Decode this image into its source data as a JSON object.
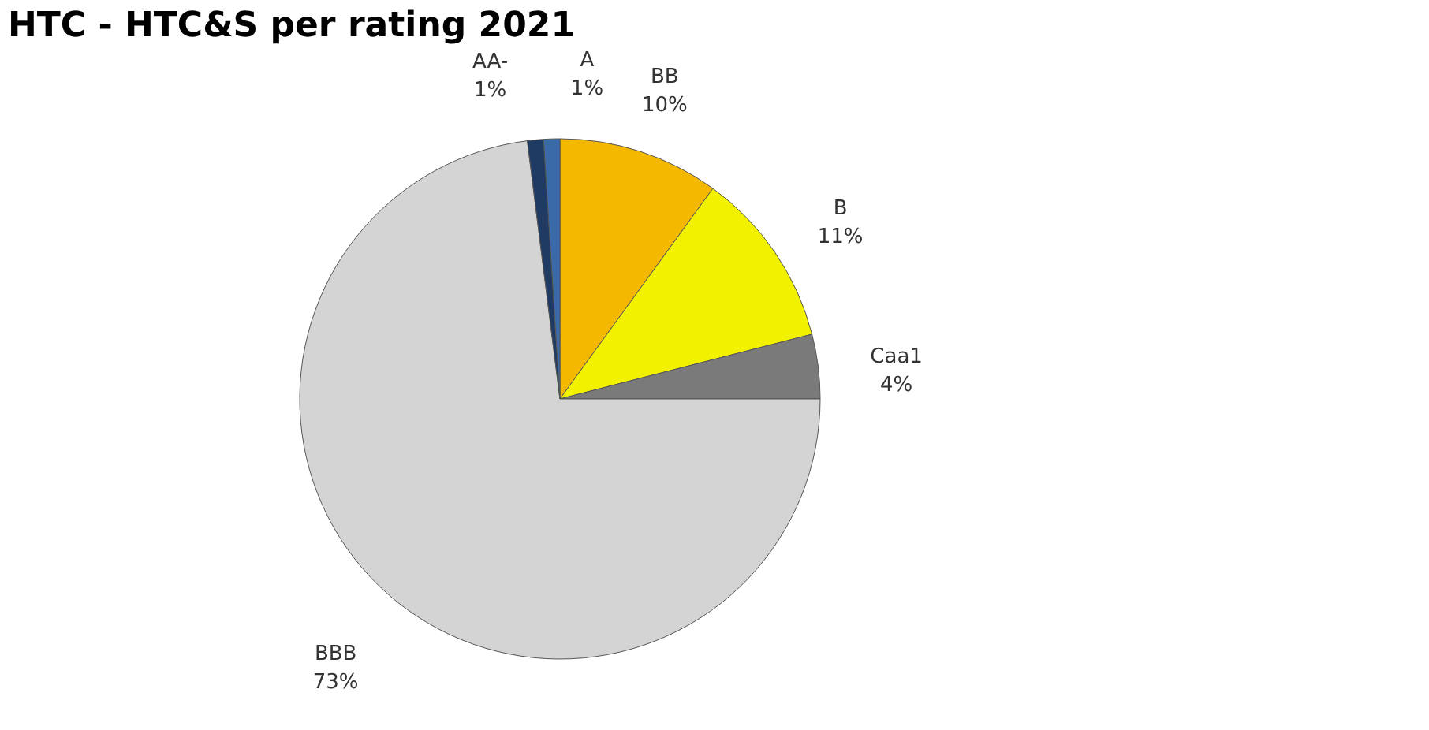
{
  "chart_data": {
    "type": "pie",
    "title": "HTC - HTC&S per rating 2021",
    "categories": [
      "BB",
      "B",
      "Caa1",
      "BBB",
      "AA-",
      "A"
    ],
    "values": [
      10,
      11,
      4,
      73,
      1,
      1
    ],
    "value_labels": [
      "10%",
      "11%",
      "4%",
      "73%",
      "1%",
      "1%"
    ],
    "colors": [
      "#f5b800",
      "#f2f200",
      "#7a7a7a",
      "#d4d4d4",
      "#1f3b63",
      "#3a6aa8"
    ],
    "legend": false
  }
}
